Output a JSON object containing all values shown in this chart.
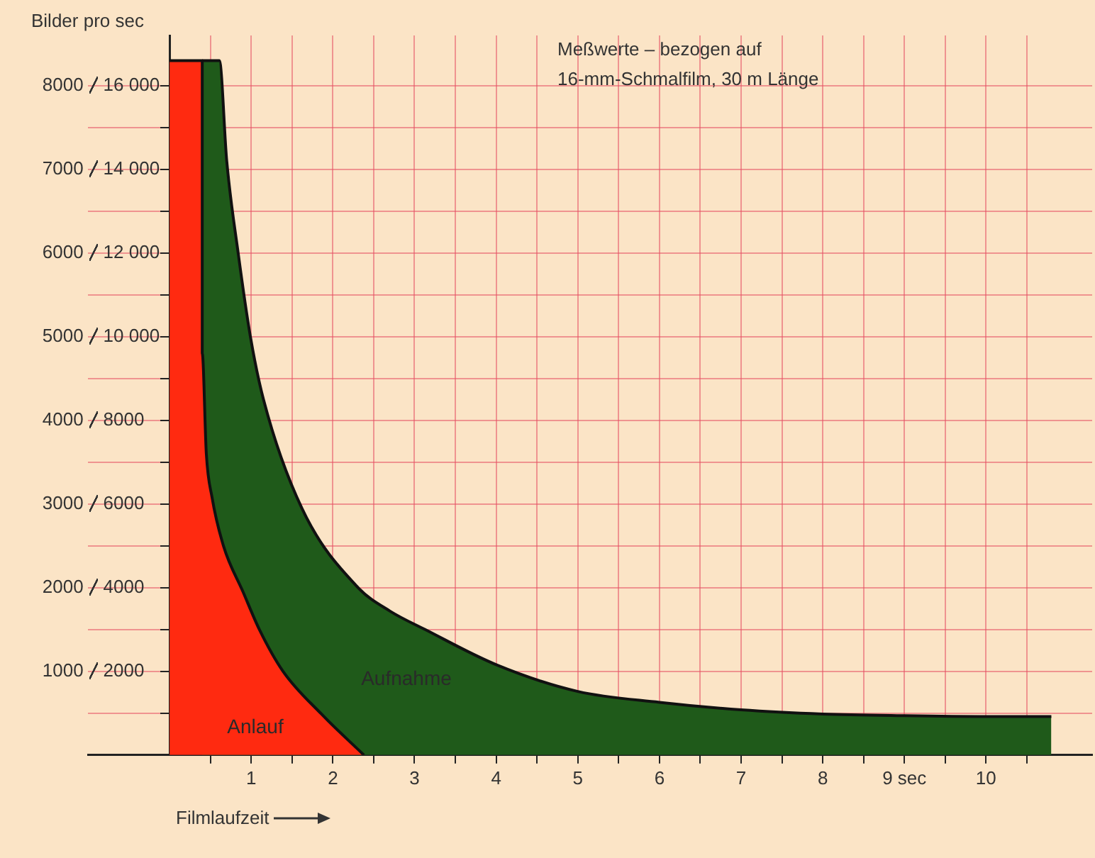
{
  "chart_data": {
    "type": "area",
    "xlabel": "Filmlaufzeit",
    "ylabel": "Bilder pro sec",
    "annotations": [
      "Meßwerte – bezogen auf\n16-mm-Schmalfilm, 30 m Länge"
    ],
    "series": [
      {
        "name": "Aufnahme",
        "color": "#1f5a1a",
        "x": [
          0.4,
          0.61,
          0.7,
          0.84,
          0.99,
          1.15,
          1.62,
          2.31,
          2.7,
          3.13,
          4,
          5,
          6,
          7,
          8,
          9,
          10,
          10.8
        ],
        "values": [
          8300,
          8300,
          7100,
          6000,
          5000,
          4250,
          2950,
          2000,
          1720,
          1500,
          1080,
          760,
          630,
          540,
          490,
          470,
          460,
          460
        ]
      },
      {
        "name": "Anlauf",
        "color": "#ff2a10",
        "x": [
          0,
          0.4,
          0.4,
          0.45,
          0.52,
          0.66,
          0.9,
          1.1,
          1.39,
          1.86,
          2.38
        ],
        "values": [
          8300,
          8300,
          4800,
          3600,
          3080,
          2500,
          1950,
          1500,
          1000,
          490,
          0
        ]
      }
    ],
    "xlim": [
      -1,
      11.3
    ],
    "ylim": [
      0,
      8600
    ],
    "xticks": [
      {
        "value": 0.5,
        "label": null
      },
      1,
      {
        "value": 1.5,
        "label": null
      },
      2,
      {
        "value": 2.5,
        "label": null
      },
      3,
      {
        "value": 3.5,
        "label": null
      },
      4,
      {
        "value": 4.5,
        "label": null
      },
      5,
      {
        "value": 5.5,
        "label": null
      },
      6,
      {
        "value": 6.5,
        "label": null
      },
      7,
      {
        "value": 7.5,
        "label": null
      },
      8,
      {
        "value": 8.5,
        "label": null
      },
      {
        "value": 9,
        "label": "9 sec"
      },
      {
        "value": 9.5,
        "label": null
      },
      10,
      {
        "value": 10.5,
        "label": null
      }
    ],
    "yticks": [
      {
        "value": 500,
        "label": null
      },
      1000,
      {
        "value": 1500,
        "label": null
      },
      2000,
      {
        "value": 2500,
        "label": null
      },
      3000,
      {
        "value": 3500,
        "label": null
      },
      4000,
      {
        "value": 4500,
        "label": null
      },
      5000,
      {
        "value": 5500,
        "label": null
      },
      6000,
      {
        "value": 6500,
        "label": null
      },
      7000,
      {
        "value": 7500,
        "label": null
      },
      8000
    ],
    "y2lim": [
      0,
      17200
    ],
    "y2ticks": [
      2000,
      4000,
      6000,
      8000,
      {
        "value": 10000,
        "label": "10 000"
      },
      {
        "value": 12000,
        "label": "12 000"
      },
      {
        "value": 14000,
        "label": "14 000"
      },
      {
        "value": 16000,
        "label": "16 000"
      }
    ],
    "grid": true,
    "legend": false,
    "marker": "none",
    "line_style": "solid"
  }
}
